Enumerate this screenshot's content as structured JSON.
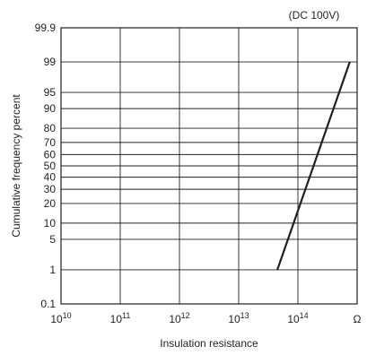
{
  "chart_data": {
    "type": "line",
    "annotation": "(DC 100V)",
    "xlabel": "Insulation resistance",
    "ylabel": "Cumulative frequency percent",
    "x_unit": "Ω",
    "x_scale": "log",
    "y_scale": "probability",
    "x_ticks": [
      {
        "base": "10",
        "exp": "10"
      },
      {
        "base": "10",
        "exp": "11"
      },
      {
        "base": "10",
        "exp": "12"
      },
      {
        "base": "10",
        "exp": "13"
      },
      {
        "base": "10",
        "exp": "14"
      }
    ],
    "y_ticks": [
      "0.1",
      "1",
      "5",
      "10",
      "20",
      "30",
      "40",
      "50",
      "60",
      "70",
      "80",
      "90",
      "95",
      "99",
      "99.9"
    ],
    "xlim": [
      10000000000.0,
      1000000000000000.0
    ],
    "ylim": [
      0.1,
      99.9
    ],
    "grid": true,
    "series": [
      {
        "x": [
          45000000000000.0,
          750000000000000.0
        ],
        "y": [
          1,
          99
        ]
      }
    ]
  }
}
